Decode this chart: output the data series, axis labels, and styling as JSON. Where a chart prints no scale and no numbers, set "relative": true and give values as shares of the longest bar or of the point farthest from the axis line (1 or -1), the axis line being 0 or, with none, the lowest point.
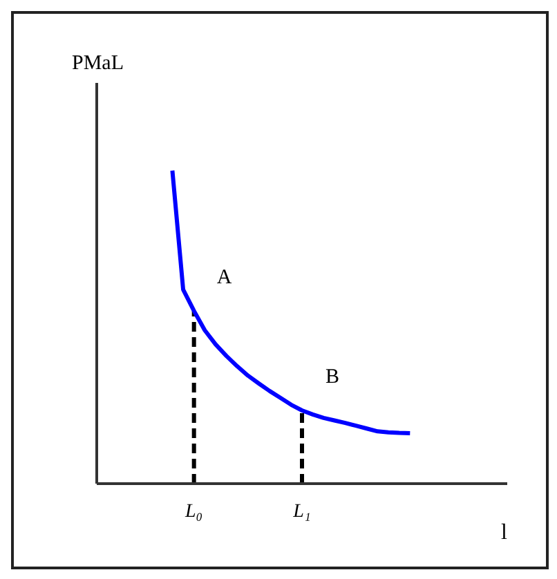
{
  "chart_data": {
    "type": "line",
    "relative": true,
    "ylabel": "PMaL",
    "xlabel": "l",
    "tick_labels": "x",
    "marker": "none",
    "categories": [
      null,
      null,
      null,
      null,
      null,
      null,
      null,
      null,
      null,
      "L₀",
      null,
      null,
      null,
      null,
      null,
      null,
      null,
      null,
      null,
      "L₁",
      null,
      null,
      null,
      null,
      null,
      null,
      null,
      null,
      null,
      null,
      null,
      null,
      null,
      null,
      null,
      null,
      null,
      null,
      null
    ],
    "series": [
      {
        "color": "#0000ff",
        "line_style": "solid",
        "values": [
          null,
          null,
          null,
          null,
          null,
          null,
          null,
          1.0,
          0.62,
          0.552,
          0.49,
          0.445,
          0.408,
          0.375,
          0.345,
          0.32,
          0.296,
          0.274,
          0.252,
          0.234,
          0.221,
          0.21,
          0.202,
          0.194,
          0.185,
          0.176,
          0.167,
          0.164,
          0.162,
          0.161,
          null,
          null,
          null,
          null,
          null,
          null,
          null,
          null,
          null
        ]
      }
    ],
    "ref_lines": [
      {
        "axis": "x",
        "value": "L₀",
        "line_style": "dashed",
        "color": "#000000"
      },
      {
        "axis": "x",
        "value": "L₁",
        "line_style": "dashed",
        "color": "#000000"
      }
    ],
    "annotations": [
      {
        "text": "A",
        "x": "L₀",
        "y": 0.552
      },
      {
        "text": "B",
        "x": "L₁",
        "y": 0.234
      }
    ]
  }
}
